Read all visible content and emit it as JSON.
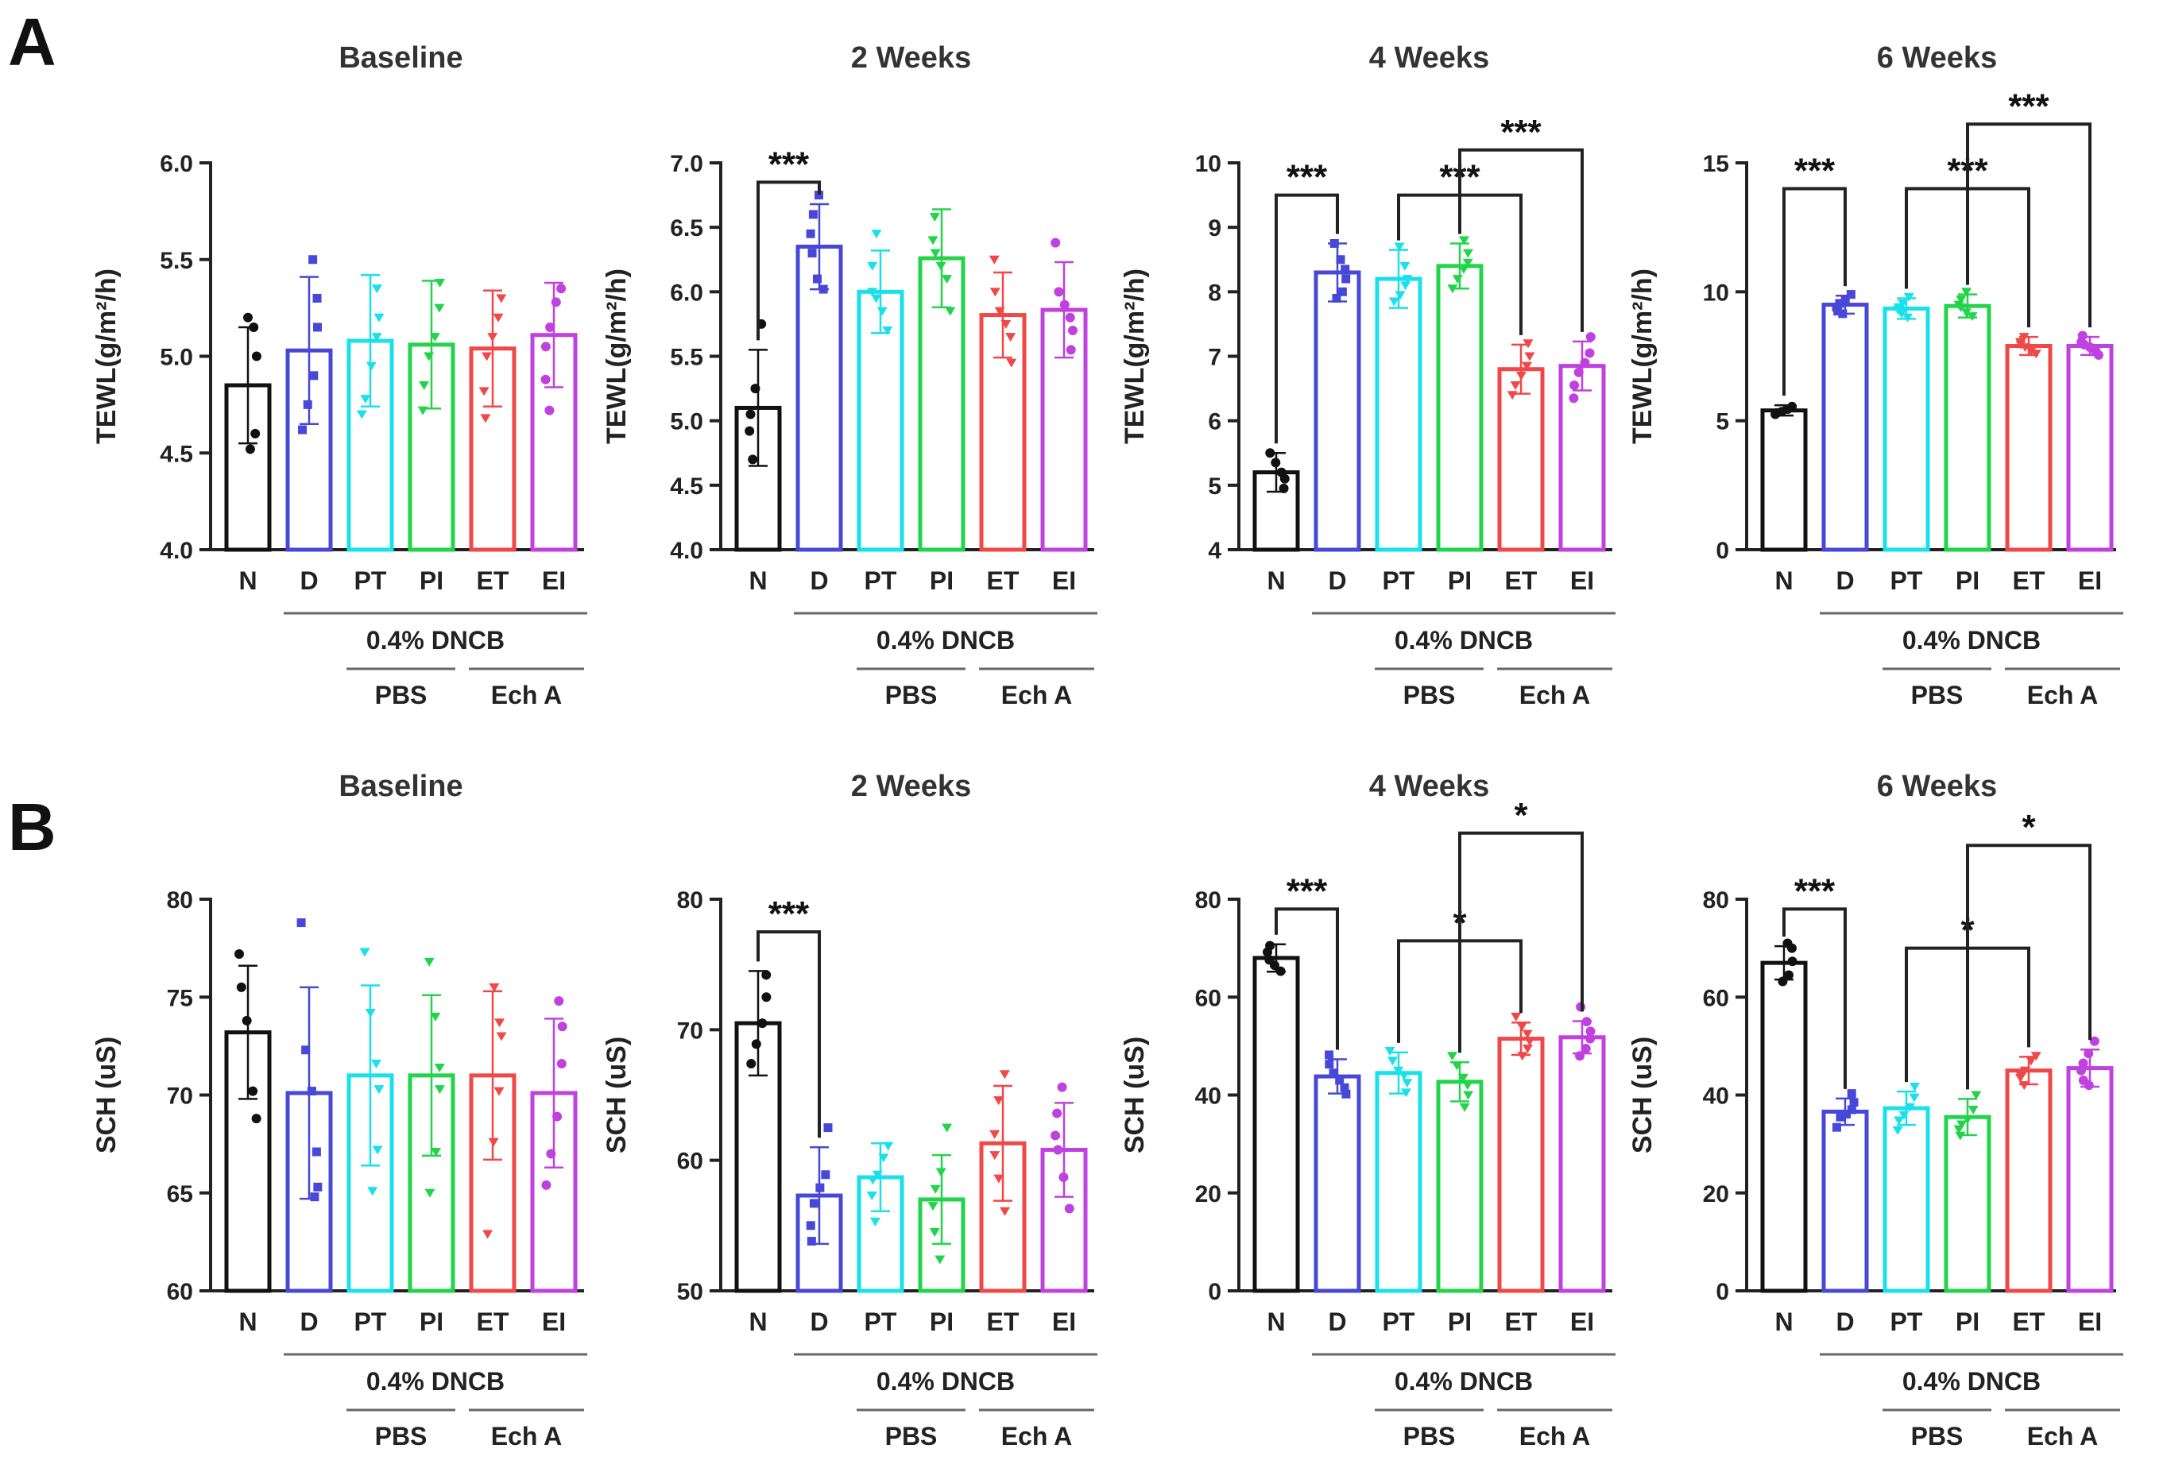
{
  "panels": [
    {
      "letter": "A"
    },
    {
      "letter": "B"
    }
  ],
  "chart_data": [
    {
      "type": "bar",
      "panel": "A",
      "title": "Baseline",
      "ylabel": "TEWL(g/m²/h)",
      "ylim": [
        4.0,
        6.0
      ],
      "yticks": [
        "4.0",
        "4.5",
        "5.0",
        "5.5",
        "6.0"
      ],
      "categories": [
        "N",
        "D",
        "PT",
        "PI",
        "ET",
        "EI"
      ],
      "values": [
        4.85,
        5.03,
        5.08,
        5.06,
        5.04,
        5.11
      ],
      "errors": [
        0.3,
        0.38,
        0.34,
        0.33,
        0.3,
        0.27
      ],
      "points": [
        [
          5.2,
          5.15,
          5.0,
          4.6,
          4.52
        ],
        [
          5.5,
          5.3,
          5.15,
          4.9,
          4.75,
          4.62
        ],
        [
          5.35,
          5.2,
          5.1,
          4.95,
          4.78,
          4.7
        ],
        [
          5.38,
          5.25,
          5.1,
          5.0,
          4.85,
          4.72
        ],
        [
          5.3,
          5.2,
          5.1,
          5.0,
          4.82,
          4.68
        ],
        [
          5.35,
          5.28,
          5.15,
          5.05,
          4.88,
          4.72
        ]
      ],
      "group_labels": {
        "dncb": "0.4% DNCB",
        "pbs": "PBS",
        "ech": "Ech A"
      },
      "sig": []
    },
    {
      "type": "bar",
      "panel": "A",
      "title": "2 Weeks",
      "ylabel": "TEWL(g/m²/h)",
      "ylim": [
        4.0,
        7.0
      ],
      "yticks": [
        "4.0",
        "4.5",
        "5.0",
        "5.5",
        "6.0",
        "6.5",
        "7.0"
      ],
      "categories": [
        "N",
        "D",
        "PT",
        "PI",
        "ET",
        "EI"
      ],
      "values": [
        5.1,
        6.35,
        6.0,
        6.26,
        5.82,
        5.86
      ],
      "errors": [
        0.45,
        0.33,
        0.32,
        0.38,
        0.33,
        0.37
      ],
      "points": [
        [
          5.75,
          5.25,
          5.05,
          4.92,
          4.7
        ],
        [
          6.75,
          6.6,
          6.45,
          6.3,
          6.1,
          6.02
        ],
        [
          6.45,
          6.2,
          6.0,
          5.95,
          5.85,
          5.7
        ],
        [
          6.58,
          6.4,
          6.3,
          6.2,
          6.1,
          5.85
        ],
        [
          6.25,
          6.0,
          5.85,
          5.75,
          5.65,
          5.45
        ],
        [
          6.38,
          6.0,
          5.9,
          5.8,
          5.7,
          5.55
        ]
      ],
      "group_labels": {
        "dncb": "0.4% DNCB",
        "pbs": "PBS",
        "ech": "Ech A"
      },
      "sig": [
        {
          "a": 0,
          "b": 1,
          "y": 6.85,
          "label": "***"
        }
      ]
    },
    {
      "type": "bar",
      "panel": "A",
      "title": "4 Weeks",
      "ylabel": "TEWL(g/m²/h)",
      "ylim": [
        4,
        10
      ],
      "yticks": [
        "4",
        "5",
        "6",
        "7",
        "8",
        "9",
        "10"
      ],
      "categories": [
        "N",
        "D",
        "PT",
        "PI",
        "ET",
        "EI"
      ],
      "values": [
        5.2,
        8.3,
        8.2,
        8.4,
        6.8,
        6.85
      ],
      "errors": [
        0.3,
        0.45,
        0.45,
        0.35,
        0.38,
        0.38
      ],
      "points": [
        [
          5.5,
          5.35,
          5.2,
          5.1,
          4.95
        ],
        [
          8.75,
          8.5,
          8.35,
          8.2,
          8.0,
          7.9
        ],
        [
          8.7,
          8.4,
          8.2,
          8.1,
          7.95,
          7.85
        ],
        [
          8.8,
          8.6,
          8.45,
          8.35,
          8.2,
          8.05
        ],
        [
          7.2,
          7.0,
          6.85,
          6.7,
          6.55,
          6.4
        ],
        [
          7.3,
          7.05,
          6.9,
          6.75,
          6.55,
          6.35
        ]
      ],
      "group_labels": {
        "dncb": "0.4% DNCB",
        "pbs": "PBS",
        "ech": "Ech A"
      },
      "sig": [
        {
          "a": 0,
          "b": 1,
          "y": 9.5,
          "label": "***"
        },
        {
          "a": 2,
          "b": 4,
          "y": 9.5,
          "label": "***"
        },
        {
          "a": 3,
          "b": 5,
          "y": 10.2,
          "label": "***"
        }
      ]
    },
    {
      "type": "bar",
      "panel": "A",
      "title": "6 Weeks",
      "ylabel": "TEWL(g/m²/h)",
      "ylim": [
        0,
        15
      ],
      "yticks": [
        "0",
        "5",
        "10",
        "15"
      ],
      "categories": [
        "N",
        "D",
        "PT",
        "PI",
        "ET",
        "EI"
      ],
      "values": [
        5.4,
        9.5,
        9.35,
        9.45,
        7.9,
        7.9
      ],
      "errors": [
        0.2,
        0.35,
        0.4,
        0.45,
        0.35,
        0.35
      ],
      "points": [
        [
          5.55,
          5.45,
          5.35,
          5.3,
          5.25
        ],
        [
          9.9,
          9.7,
          9.55,
          9.4,
          9.25,
          9.15
        ],
        [
          9.8,
          9.55,
          9.4,
          9.3,
          9.15,
          9.0
        ],
        [
          10.0,
          9.7,
          9.5,
          9.4,
          9.2,
          9.05
        ],
        [
          8.25,
          8.05,
          7.95,
          7.85,
          7.7,
          7.6
        ],
        [
          8.3,
          8.05,
          7.95,
          7.85,
          7.7,
          7.55
        ]
      ],
      "group_labels": {
        "dncb": "0.4% DNCB",
        "pbs": "PBS",
        "ech": "Ech A"
      },
      "sig": [
        {
          "a": 0,
          "b": 1,
          "y": 14.0,
          "label": "***"
        },
        {
          "a": 2,
          "b": 4,
          "y": 14.0,
          "label": "***"
        },
        {
          "a": 3,
          "b": 5,
          "y": 16.5,
          "label": "***"
        }
      ]
    },
    {
      "type": "bar",
      "panel": "B",
      "title": "Baseline",
      "ylabel": "SCH (uS)",
      "ylim": [
        60,
        80
      ],
      "yticks": [
        "60",
        "65",
        "70",
        "75",
        "80"
      ],
      "categories": [
        "N",
        "D",
        "PT",
        "PI",
        "ET",
        "EI"
      ],
      "values": [
        73.2,
        70.1,
        71.0,
        71.0,
        71.0,
        70.1
      ],
      "errors": [
        3.4,
        5.4,
        4.6,
        4.1,
        4.3,
        3.8
      ],
      "points": [
        [
          77.2,
          75.5,
          73.8,
          70.2,
          68.8
        ],
        [
          78.8,
          72.3,
          70.2,
          67.1,
          65.3,
          64.8
        ],
        [
          77.3,
          74.2,
          71.6,
          70.3,
          67.2,
          65.1
        ],
        [
          76.8,
          74.0,
          71.4,
          70.3,
          67.1,
          65.0
        ],
        [
          75.5,
          73.7,
          73.0,
          70.2,
          67.6,
          62.9
        ],
        [
          74.8,
          73.5,
          71.6,
          68.9,
          67.0,
          65.4
        ]
      ],
      "group_labels": {
        "dncb": "0.4% DNCB",
        "pbs": "PBS",
        "ech": "Ech A"
      },
      "sig": []
    },
    {
      "type": "bar",
      "panel": "B",
      "title": "2 Weeks",
      "ylabel": "SCH (uS)",
      "ylim": [
        50,
        80
      ],
      "yticks": [
        "50",
        "60",
        "70",
        "80"
      ],
      "categories": [
        "N",
        "D",
        "PT",
        "PI",
        "ET",
        "EI"
      ],
      "values": [
        70.5,
        57.3,
        58.7,
        57.0,
        61.3,
        60.8
      ],
      "errors": [
        4.0,
        3.7,
        2.6,
        3.4,
        4.4,
        3.6
      ],
      "points": [
        [
          74.2,
          72.5,
          70.5,
          68.9,
          67.4
        ],
        [
          62.5,
          58.9,
          57.9,
          56.7,
          55.0,
          53.8
        ],
        [
          61.1,
          60.2,
          58.9,
          58.5,
          57.3,
          55.3
        ],
        [
          62.5,
          59.1,
          57.8,
          56.5,
          54.5,
          52.4
        ],
        [
          66.6,
          64.6,
          62.0,
          60.4,
          58.6,
          56.1
        ],
        [
          65.6,
          63.6,
          61.9,
          60.8,
          58.7,
          56.3
        ]
      ],
      "group_labels": {
        "dncb": "0.4% DNCB",
        "pbs": "PBS",
        "ech": "Ech A"
      },
      "sig": [
        {
          "a": 0,
          "b": 1,
          "y": 77.5,
          "label": "***"
        }
      ]
    },
    {
      "type": "bar",
      "panel": "B",
      "title": "4 Weeks",
      "ylabel": "SCH (uS)",
      "ylim": [
        0,
        80
      ],
      "yticks": [
        "0",
        "20",
        "40",
        "60",
        "80"
      ],
      "categories": [
        "N",
        "D",
        "PT",
        "PI",
        "ET",
        "EI"
      ],
      "values": [
        68.0,
        43.8,
        44.5,
        42.7,
        51.5,
        51.8
      ],
      "errors": [
        2.8,
        3.5,
        4.2,
        4.0,
        3.3,
        3.3
      ],
      "points": [
        [
          70.5,
          69.2,
          67.6,
          66.5,
          65.3
        ],
        [
          48.2,
          46.3,
          44.5,
          43.0,
          41.5,
          40.2
        ],
        [
          49.0,
          47.0,
          45.0,
          44.0,
          42.5,
          40.5
        ],
        [
          48.0,
          46.0,
          43.5,
          42.0,
          40.0,
          37.5
        ],
        [
          56.0,
          54.0,
          52.5,
          51.0,
          49.5,
          48.0
        ],
        [
          58.0,
          55.0,
          53.0,
          51.5,
          49.5,
          48.0
        ]
      ],
      "group_labels": {
        "dncb": "0.4% DNCB",
        "pbs": "PBS",
        "ech": "Ech A"
      },
      "sig": [
        {
          "a": 0,
          "b": 1,
          "y": 78.0,
          "label": "***"
        },
        {
          "a": 2,
          "b": 4,
          "y": 71.5,
          "label": "*"
        },
        {
          "a": 3,
          "b": 5,
          "y": 93.5,
          "label": "*"
        }
      ]
    },
    {
      "type": "bar",
      "panel": "B",
      "title": "6 Weeks",
      "ylabel": "SCH (uS)",
      "ylim": [
        0,
        80
      ],
      "yticks": [
        "0",
        "20",
        "40",
        "60",
        "80"
      ],
      "categories": [
        "N",
        "D",
        "PT",
        "PI",
        "ET",
        "EI"
      ],
      "values": [
        67.0,
        36.6,
        37.3,
        35.5,
        45.0,
        45.5
      ],
      "errors": [
        3.4,
        2.7,
        3.4,
        3.7,
        2.8,
        3.8
      ],
      "points": [
        [
          71.0,
          70.0,
          67.3,
          64.5,
          63.2
        ],
        [
          40.3,
          38.5,
          37.0,
          36.1,
          35.5,
          33.4
        ],
        [
          41.7,
          39.5,
          37.5,
          35.9,
          34.8,
          32.8
        ],
        [
          40.0,
          37.0,
          35.0,
          34.0,
          33.0,
          31.7
        ],
        [
          48.0,
          47.0,
          45.0,
          44.0,
          43.5,
          42.0
        ],
        [
          51.0,
          48.5,
          46.5,
          45.0,
          43.0,
          42.0
        ]
      ],
      "group_labels": {
        "dncb": "0.4% DNCB",
        "pbs": "PBS",
        "ech": "Ech A"
      },
      "sig": [
        {
          "a": 0,
          "b": 1,
          "y": 78.0,
          "label": "***"
        },
        {
          "a": 2,
          "b": 4,
          "y": 70.0,
          "label": "*"
        },
        {
          "a": 3,
          "b": 5,
          "y": 91.0,
          "label": "*"
        }
      ]
    }
  ],
  "colors": {
    "N": "#111111",
    "D": "#4848d8",
    "PT": "#19e0ea",
    "PI": "#22d44a",
    "ET": "#f04848",
    "EI": "#c040e0",
    "axis": "#222222",
    "group_line": "#666666"
  }
}
